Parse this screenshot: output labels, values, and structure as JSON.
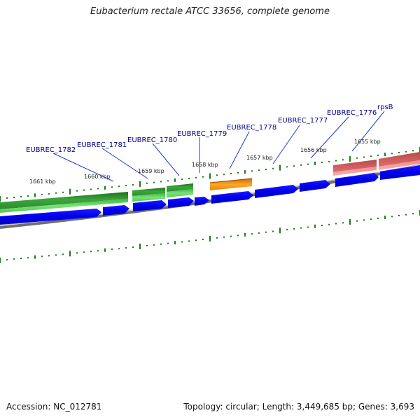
{
  "title": "Eubacterium rectale ATCC 33656, complete genome",
  "accession": "Accession: NC_012781",
  "summary": "Topology: circular; Length: 3,449,685 bp; Genes: 3,693",
  "colors": {
    "gene_label": "#00008b",
    "leader_line": "#1e3cc8",
    "tick": "#1a7a1a",
    "backbone": "#7a7a7a",
    "cds_blue": "#0000ee",
    "cds_green_dark": "#2e8b2e",
    "cds_green_light": "#55cc55",
    "cds_orange": "#e88a00",
    "cds_pink": "#ee8080"
  },
  "kbp_labels": [
    "1661 kbp",
    "1660 kbp",
    "1659 kbp",
    "1658 kbp",
    "1657 kbp",
    "1656 kbp",
    "1655 kbp"
  ],
  "gene_labels": [
    "EUBREC_1782",
    "EUBREC_1781",
    "EUBREC_1780",
    "EUBREC_1779",
    "EUBREC_1778",
    "EUBREC_1777",
    "EUBREC_1776",
    "rpsB"
  ]
}
